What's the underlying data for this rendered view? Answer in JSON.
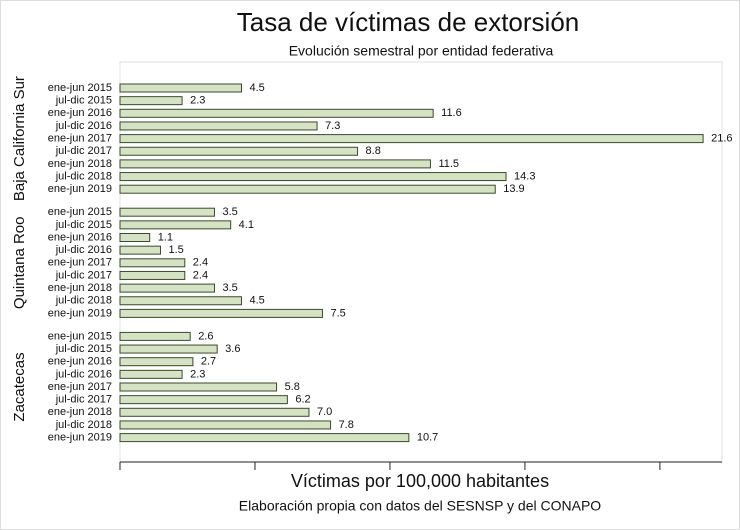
{
  "chart_data": {
    "type": "bar",
    "title": "Tasa de víctimas de extorsión",
    "subtitle": "Evolución semestral por entidad federativa",
    "x_label": "Víctimas por 100,000 habitantes",
    "caption": "Elaboración propia con datos del SESNSP y del CONAPO",
    "color": "#d5e2c3",
    "edge_color": "#3b4a2c",
    "xlim": [
      0,
      22.3
    ],
    "xticks": [
      0,
      5,
      10,
      15,
      20
    ],
    "show_tick_labels": false,
    "groups": [
      {
        "name": "Baja California Sur",
        "categories": [
          "ene-jun 2015",
          "jul-dic 2015",
          "ene-jun 2016",
          "jul-dic 2016",
          "ene-jun 2017",
          "jul-dic 2017",
          "ene-jun 2018",
          "jul-dic 2018",
          "ene-jun 2019"
        ],
        "values": [
          4.5,
          2.3,
          11.6,
          7.3,
          21.6,
          8.8,
          11.5,
          14.3,
          13.9
        ]
      },
      {
        "name": "Quintana Roo",
        "categories": [
          "ene-jun 2015",
          "jul-dic 2015",
          "ene-jun 2016",
          "jul-dic 2016",
          "ene-jun 2017",
          "jul-dic 2017",
          "ene-jun 2018",
          "jul-dic 2018",
          "ene-jun 2019"
        ],
        "values": [
          3.5,
          4.1,
          1.1,
          1.5,
          2.4,
          2.4,
          3.5,
          4.5,
          7.5
        ]
      },
      {
        "name": "Zacatecas",
        "categories": [
          "ene-jun 2015",
          "jul-dic 2015",
          "ene-jun 2016",
          "jul-dic 2016",
          "ene-jun 2017",
          "jul-dic 2017",
          "ene-jun 2018",
          "jul-dic 2018",
          "ene-jun 2019"
        ],
        "values": [
          2.6,
          3.6,
          2.7,
          2.3,
          5.8,
          6.2,
          7.0,
          7.8,
          10.7
        ],
        "value_labels": [
          "2.6",
          "3.6",
          "2.7",
          "2.3",
          "5.8",
          "6.2",
          "7.0",
          "7.8",
          "10.7"
        ]
      }
    ]
  }
}
